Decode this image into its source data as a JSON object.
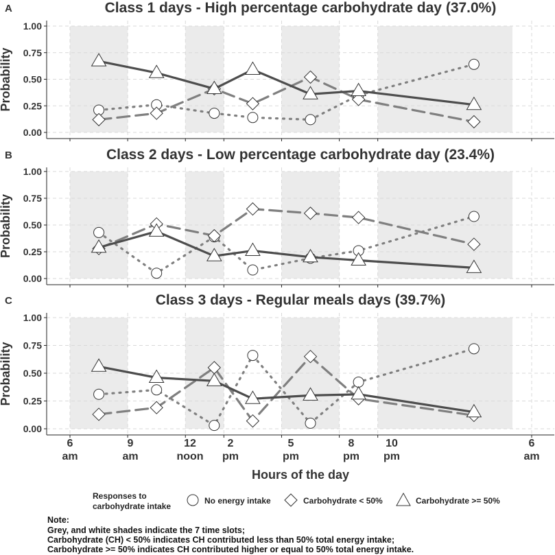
{
  "figure": {
    "xlabel": "Hours of the day",
    "ylabel": "Probability",
    "x_ticks": [
      {
        "l1": "6",
        "l2": "am"
      },
      {
        "l1": "9",
        "l2": "am"
      },
      {
        "l1": "12",
        "l2": "noon"
      },
      {
        "l1": "2",
        "l2": "pm"
      },
      {
        "l1": "5",
        "l2": "pm"
      },
      {
        "l1": "8",
        "l2": "pm"
      },
      {
        "l1": "10",
        "l2": "pm"
      },
      {
        "l1": "6",
        "l2": "am"
      }
    ],
    "y_ticks": [
      "1.00",
      "0.75",
      "0.50",
      "0.25",
      "0.00"
    ],
    "legend": {
      "title_line1": "Responses to",
      "title_line2": "carbohydrate intake",
      "items": [
        "No energy intake",
        "Carbohydrate < 50%",
        "Carbohydrate >= 50%"
      ]
    },
    "note": {
      "title": "Note:",
      "line1": "Grey, and white shades indicate the 7 time slots;",
      "line2": "Carbohydrate (CH) < 50% indicates CH contributed less than 50% total energy intake;",
      "line3": "Carbohydrate >= 50% indicates CH contributed higher or equal to 50% total energy intake."
    },
    "colors": {
      "shade": "#ebebeb",
      "grid": "#d9d9d9",
      "line_dark": "#4d4d4d",
      "line_light": "#7f7f7f"
    }
  },
  "chart_data": [
    {
      "type": "line",
      "panel": "A",
      "title": "Class 1 days - High percentage carbohydrate day (37.0%)",
      "x": [
        "7:30",
        "10:30",
        "13:30",
        "15:30",
        "18:30",
        "21:00",
        "27:00"
      ],
      "ylim": [
        0,
        1
      ],
      "series": [
        {
          "name": "No energy intake",
          "values": [
            0.21,
            0.26,
            0.18,
            0.14,
            0.12,
            0.35,
            0.64
          ]
        },
        {
          "name": "Carbohydrate < 50%",
          "values": [
            0.12,
            0.18,
            0.41,
            0.27,
            0.52,
            0.31,
            0.1
          ]
        },
        {
          "name": "Carbohydrate >= 50%",
          "values": [
            0.67,
            0.56,
            0.41,
            0.59,
            0.36,
            0.39,
            0.26
          ]
        }
      ]
    },
    {
      "type": "line",
      "panel": "B",
      "title": "Class 2 days - Low percentage carbohydrate day (23.4%)",
      "x": [
        "7:30",
        "10:30",
        "13:30",
        "15:30",
        "18:30",
        "21:00",
        "27:00"
      ],
      "ylim": [
        0,
        1
      ],
      "series": [
        {
          "name": "No energy intake",
          "values": [
            0.43,
            0.05,
            0.39,
            0.08,
            0.19,
            0.26,
            0.58
          ]
        },
        {
          "name": "Carbohydrate < 50%",
          "values": [
            0.28,
            0.51,
            0.4,
            0.65,
            0.61,
            0.57,
            0.32
          ]
        },
        {
          "name": "Carbohydrate >= 50%",
          "values": [
            0.29,
            0.44,
            0.21,
            0.26,
            0.2,
            0.17,
            0.1
          ]
        }
      ]
    },
    {
      "type": "line",
      "panel": "C",
      "title": "Class 3 days - Regular meals days (39.7%)",
      "x": [
        "7:30",
        "10:30",
        "13:30",
        "15:30",
        "18:30",
        "21:00",
        "27:00"
      ],
      "ylim": [
        0,
        1
      ],
      "series": [
        {
          "name": "No energy intake",
          "values": [
            0.31,
            0.35,
            0.03,
            0.66,
            0.05,
            0.42,
            0.72
          ]
        },
        {
          "name": "Carbohydrate < 50%",
          "values": [
            0.13,
            0.19,
            0.55,
            0.07,
            0.65,
            0.27,
            0.12
          ]
        },
        {
          "name": "Carbohydrate >= 50%",
          "values": [
            0.56,
            0.46,
            0.43,
            0.27,
            0.3,
            0.31,
            0.15
          ]
        }
      ]
    }
  ]
}
